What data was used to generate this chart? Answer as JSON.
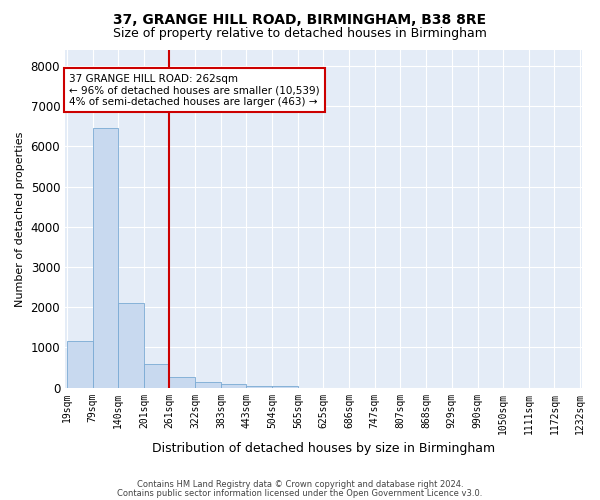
{
  "title": "37, GRANGE HILL ROAD, BIRMINGHAM, B38 8RE",
  "subtitle": "Size of property relative to detached houses in Birmingham",
  "xlabel": "Distribution of detached houses by size in Birmingham",
  "ylabel": "Number of detached properties",
  "footer_line1": "Contains HM Land Registry data © Crown copyright and database right 2024.",
  "footer_line2": "Contains public sector information licensed under the Open Government Licence v3.0.",
  "bin_edges": [
    19,
    79,
    140,
    201,
    261,
    322,
    383,
    443,
    504,
    565,
    625,
    686,
    747,
    807,
    868,
    929,
    990,
    1050,
    1111,
    1172,
    1232
  ],
  "bar_heights": [
    1150,
    6450,
    2100,
    600,
    270,
    130,
    80,
    50,
    50,
    0,
    0,
    0,
    0,
    0,
    0,
    0,
    0,
    0,
    0,
    0
  ],
  "bar_color": "#c8d9ef",
  "bar_edge_color": "#7aaad4",
  "vline_color": "#cc0000",
  "vline_x": 261,
  "annotation_text": "37 GRANGE HILL ROAD: 262sqm\n← 96% of detached houses are smaller (10,539)\n4% of semi-detached houses are larger (463) →",
  "annotation_box_color": "#cc0000",
  "ylim": [
    0,
    8400
  ],
  "yticks": [
    0,
    1000,
    2000,
    3000,
    4000,
    5000,
    6000,
    7000,
    8000
  ],
  "plot_background": "#e4ecf7",
  "grid_color": "#ffffff",
  "title_fontsize": 10,
  "subtitle_fontsize": 9,
  "tick_fontsize": 7,
  "ylabel_fontsize": 8,
  "xlabel_fontsize": 9
}
